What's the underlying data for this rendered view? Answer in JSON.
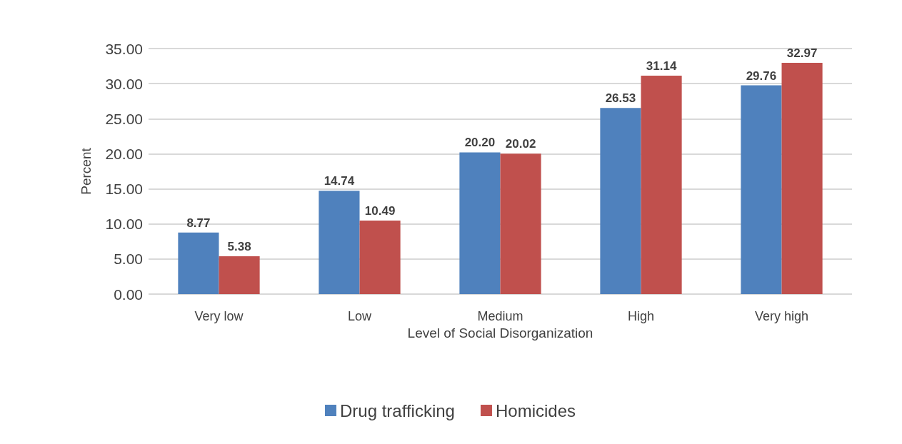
{
  "chart_data": {
    "type": "bar",
    "xlabel": "Level of Social Disorganization",
    "ylabel": "Percent",
    "categories": [
      "Very low",
      "Low",
      "Medium",
      "High",
      "Very high"
    ],
    "series": [
      {
        "name": "Drug trafficking",
        "color": "#4f81bd",
        "values": [
          8.77,
          14.74,
          20.2,
          26.53,
          29.76
        ],
        "value_labels": [
          "8.77",
          "14.74",
          "20.20",
          "26.53",
          "29.76"
        ]
      },
      {
        "name": "Homicides",
        "color": "#c0504d",
        "values": [
          5.38,
          10.49,
          20.02,
          31.14,
          32.97
        ],
        "value_labels": [
          "5.38",
          "10.49",
          "20.02",
          "31.14",
          "32.97"
        ]
      }
    ],
    "ylim": [
      0,
      35
    ],
    "yticks": [
      {
        "value": 0,
        "label": "0.00"
      },
      {
        "value": 5,
        "label": "5.00"
      },
      {
        "value": 10,
        "label": "10.00"
      },
      {
        "value": 15,
        "label": "15.00"
      },
      {
        "value": 20,
        "label": "20.00"
      },
      {
        "value": 25,
        "label": "25.00"
      },
      {
        "value": 30,
        "label": "30.00"
      },
      {
        "value": 35,
        "label": "35.00"
      }
    ],
    "grid": "y",
    "legend": "bottom"
  }
}
